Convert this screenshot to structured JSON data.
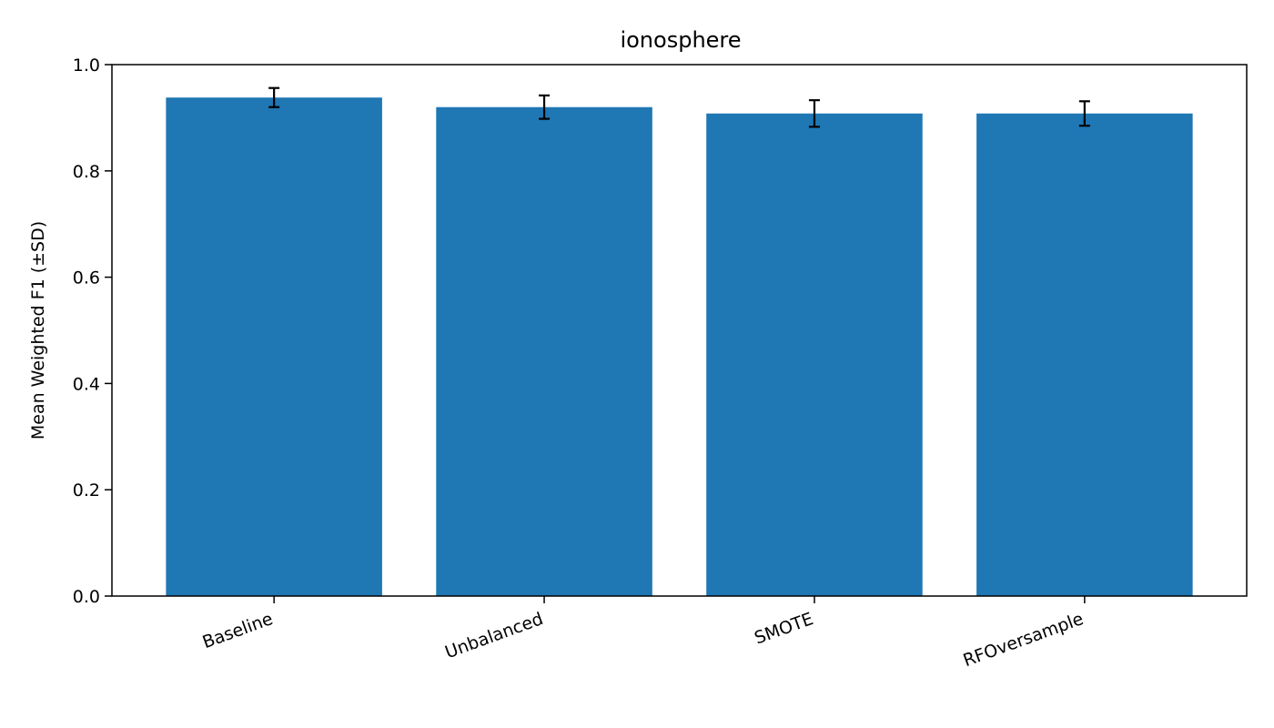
{
  "chart_data": {
    "type": "bar",
    "title": "ionosphere",
    "xlabel": "",
    "ylabel": "Mean Weighted F1 (±SD)",
    "categories": [
      "Baseline",
      "Unbalanced",
      "SMOTE",
      "RFOversample"
    ],
    "values": [
      0.938,
      0.92,
      0.908,
      0.908
    ],
    "errors": [
      0.018,
      0.022,
      0.025,
      0.023
    ],
    "ylim": [
      0,
      1.0
    ],
    "yticks": [
      "0.0",
      "0.2",
      "0.4",
      "0.6",
      "0.8",
      "1.0"
    ],
    "grid": false,
    "bar_color": "#1f77b4",
    "error_color": "#000000"
  }
}
